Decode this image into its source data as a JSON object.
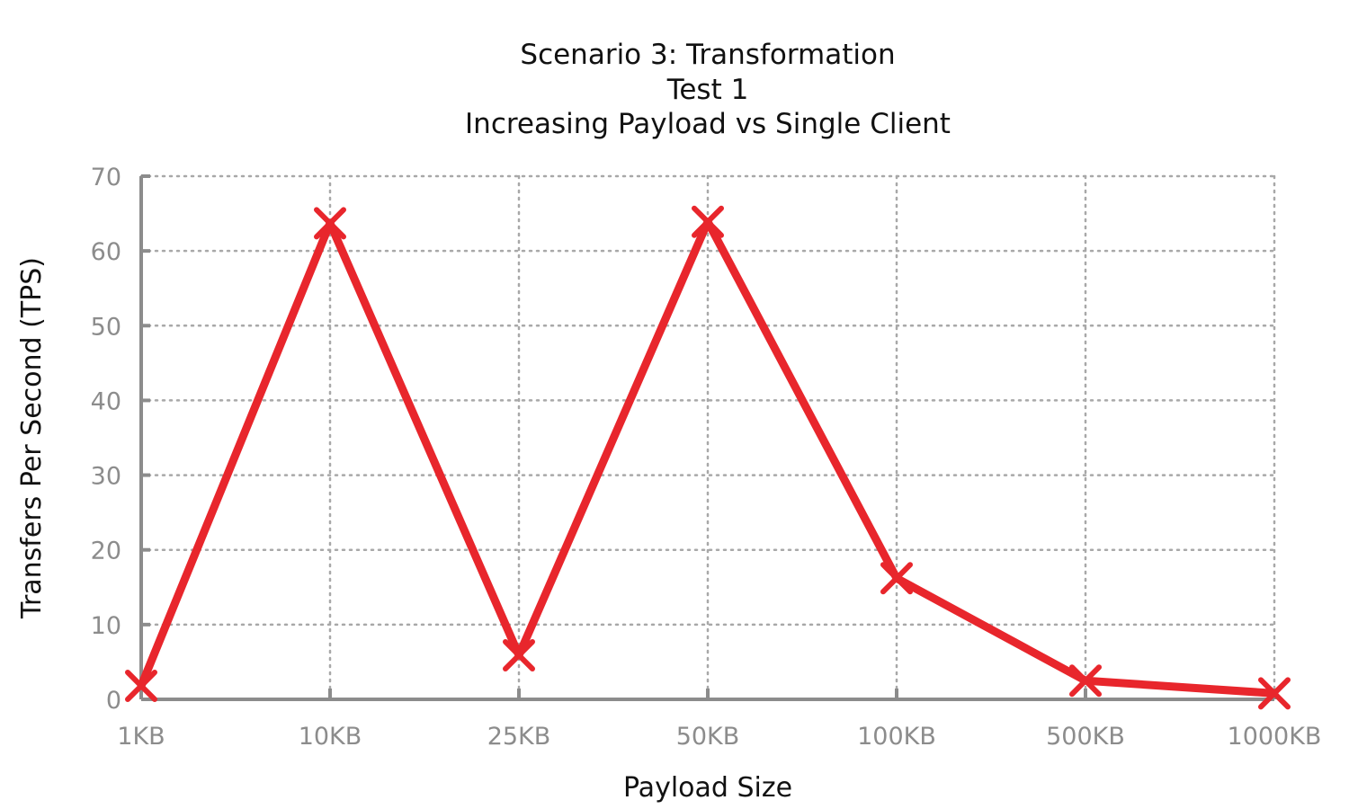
{
  "chart_data": {
    "type": "line",
    "title_lines": [
      "Scenario 3: Transformation",
      "Test 1",
      "Increasing Payload vs Single Client"
    ],
    "xlabel": "Payload Size",
    "ylabel": "Transfers Per Second (TPS)",
    "categories": [
      "1KB",
      "10KB",
      "25KB",
      "50KB",
      "100KB",
      "500KB",
      "1000KB"
    ],
    "ylim": [
      0,
      70
    ],
    "yticks": [
      0,
      10,
      20,
      30,
      40,
      50,
      60,
      70
    ],
    "grid": true,
    "series": [
      {
        "values": [
          1.8,
          63.7,
          5.9,
          63.9,
          16.2,
          2.5,
          0.8
        ],
        "color": "#e8262c",
        "marker": "x"
      }
    ]
  }
}
